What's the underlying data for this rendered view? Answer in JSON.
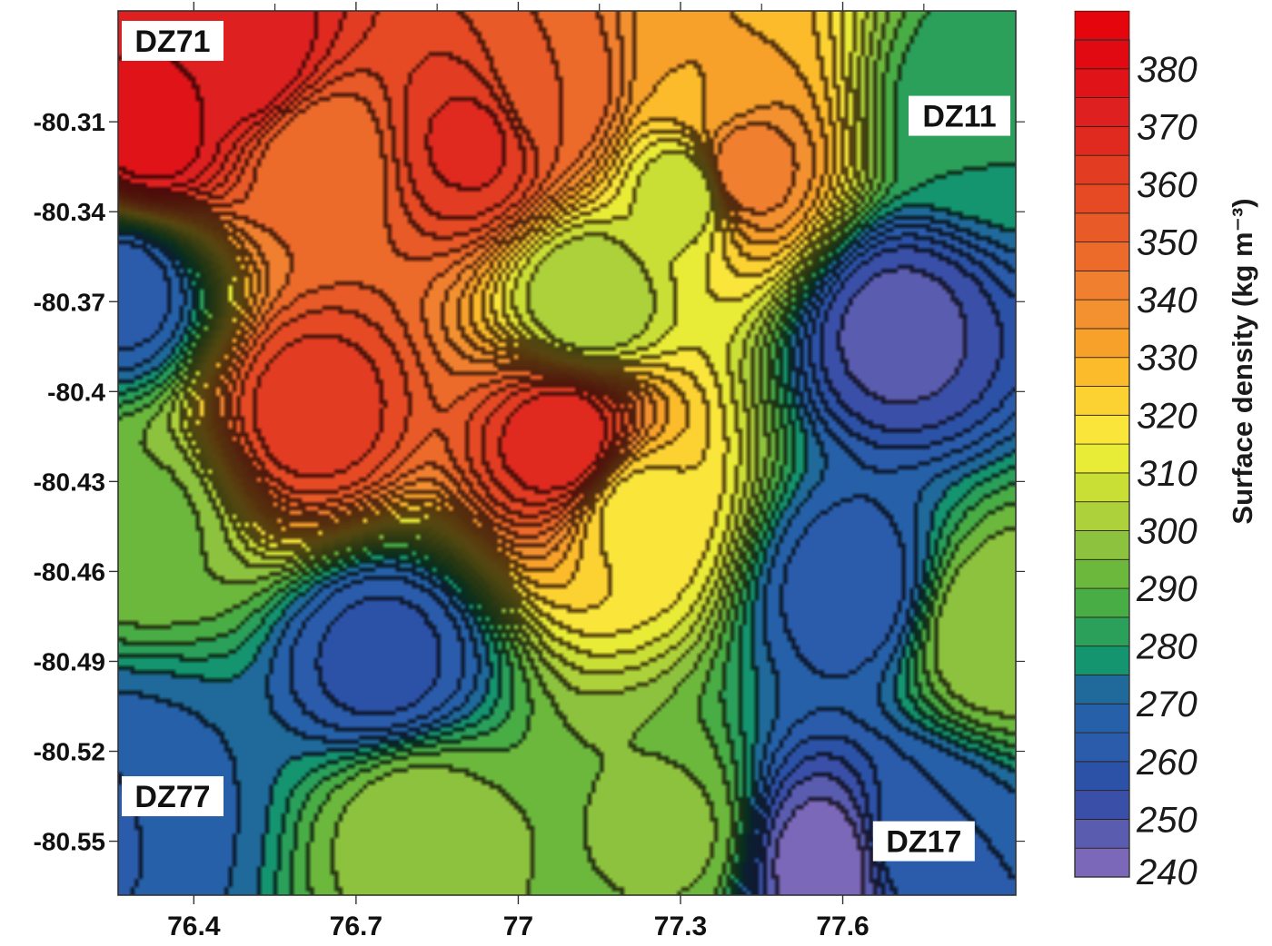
{
  "chart_data": {
    "type": "heatmap",
    "subtype": "filled-contour-map",
    "title": "",
    "xlabel": "",
    "ylabel": "",
    "colorbar_label": "Surface density (kg m⁻³)",
    "xlim": [
      76.26,
      77.92
    ],
    "ylim": [
      -80.568,
      -80.273
    ],
    "x_ticks": [
      76.4,
      76.7,
      77,
      77.3,
      77.6
    ],
    "x_tick_labels": [
      "76.4",
      "76.7",
      "77",
      "77.3",
      "77.6"
    ],
    "y_ticks": [
      -80.31,
      -80.34,
      -80.37,
      -80.4,
      -80.43,
      -80.46,
      -80.49,
      -80.52,
      -80.55
    ],
    "y_tick_labels": [
      "-80.31",
      "-80.34",
      "-80.37",
      "-80.4",
      "-80.43",
      "-80.46",
      "-80.49",
      "-80.52",
      "-80.55"
    ],
    "colorbar": {
      "min": 240,
      "max": 385,
      "step": 5,
      "tick_values": [
        380,
        370,
        360,
        350,
        340,
        330,
        320,
        310,
        300,
        290,
        280,
        270,
        260,
        250,
        240
      ],
      "tick_labels": [
        "380",
        "370",
        "360",
        "350",
        "340",
        "330",
        "320",
        "310",
        "300",
        "290",
        "280",
        "270",
        "260",
        "250",
        "240"
      ]
    },
    "contour_interval": 5,
    "stations": [
      {
        "label": "DZ71",
        "x": 76.32,
        "y": -80.283,
        "value": 375
      },
      {
        "label": "DZ11",
        "x": 77.85,
        "y": -80.308,
        "value": 280
      },
      {
        "label": "DZ77",
        "x": 76.32,
        "y": -80.535,
        "value": 270
      },
      {
        "label": "DZ17",
        "x": 77.75,
        "y": -80.55,
        "value": 265
      }
    ],
    "field_features": [
      {
        "kind": "max",
        "x": 76.32,
        "y": -80.315,
        "value": 378
      },
      {
        "kind": "max",
        "x": 76.5,
        "y": -80.29,
        "value": 375
      },
      {
        "kind": "max",
        "x": 76.92,
        "y": -80.317,
        "value": 366
      },
      {
        "kind": "max",
        "x": 76.62,
        "y": -80.407,
        "value": 363
      },
      {
        "kind": "max",
        "x": 77.09,
        "y": -80.417,
        "value": 370
      },
      {
        "kind": "max",
        "x": 76.63,
        "y": -80.323,
        "value": 345
      },
      {
        "kind": "max",
        "x": 77.41,
        "y": -80.327,
        "value": 345
      },
      {
        "kind": "max",
        "x": 77.06,
        "y": -80.3,
        "value": 350
      },
      {
        "kind": "max",
        "x": 77.35,
        "y": -80.295,
        "value": 330
      },
      {
        "kind": "min",
        "x": 77.13,
        "y": -80.37,
        "value": 300
      },
      {
        "kind": "min",
        "x": 77.32,
        "y": -80.333,
        "value": 305
      },
      {
        "kind": "min",
        "x": 77.7,
        "y": -80.38,
        "value": 248
      },
      {
        "kind": "min",
        "x": 76.27,
        "y": -80.365,
        "value": 262
      },
      {
        "kind": "min",
        "x": 76.75,
        "y": -80.49,
        "value": 258
      },
      {
        "kind": "min",
        "x": 77.57,
        "y": -80.557,
        "value": 242
      },
      {
        "kind": "min",
        "x": 77.62,
        "y": -80.466,
        "value": 262
      },
      {
        "kind": "min",
        "x": 76.26,
        "y": -80.54,
        "value": 262
      },
      {
        "kind": "max",
        "x": 76.81,
        "y": -80.546,
        "value": 298
      },
      {
        "kind": "max",
        "x": 76.31,
        "y": -80.445,
        "value": 294
      },
      {
        "kind": "max",
        "x": 77.29,
        "y": -80.548,
        "value": 296
      },
      {
        "kind": "max",
        "x": 77.88,
        "y": -80.48,
        "value": 300
      },
      {
        "kind": "max",
        "x": 77.22,
        "y": -80.44,
        "value": 318
      }
    ]
  },
  "colors": {
    "scale": [
      "#7b68b8",
      "#5a5cb0",
      "#3a50a8",
      "#2c52a8",
      "#2a5cab",
      "#2560a8",
      "#1f6a9a",
      "#159470",
      "#2aa05a",
      "#49ad45",
      "#6cb83d",
      "#8cc23e",
      "#acd13a",
      "#cadf36",
      "#e8ec36",
      "#fae63a",
      "#fcd233",
      "#fbbb2a",
      "#f7a12b",
      "#f39130",
      "#f0802f",
      "#ec6a2a",
      "#e85a27",
      "#e54a25",
      "#e23c23",
      "#e02a20",
      "#de2020",
      "#e01418",
      "#e20a12",
      "#e4060c"
    ],
    "contour_line": "#2a1e14",
    "frame": "#333333"
  }
}
